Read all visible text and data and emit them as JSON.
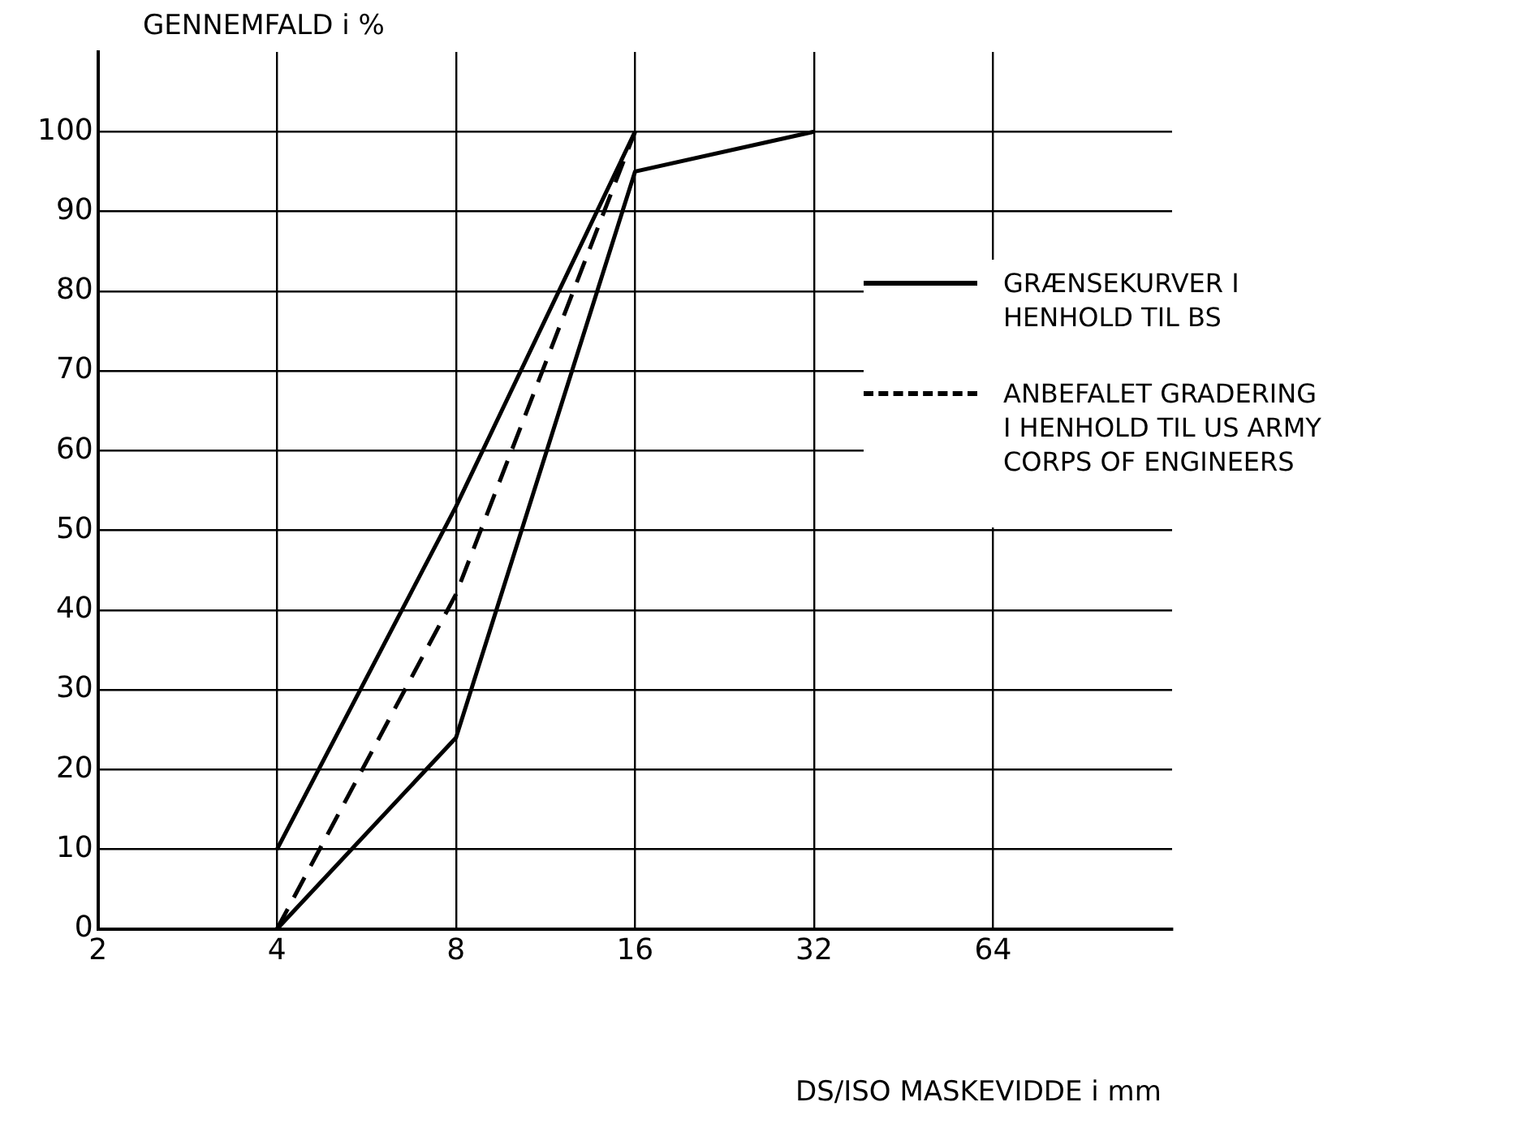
{
  "chart_data": {
    "type": "line",
    "ylabel": "GENNEMFALD i %",
    "xlabel": "DS/ISO MASKEVIDDE i mm",
    "log": "x",
    "xlim": [
      2,
      128
    ],
    "xticks": [
      2,
      4,
      8,
      16,
      32,
      64
    ],
    "ylim": [
      0,
      110
    ],
    "yticks": [
      0,
      10,
      20,
      30,
      40,
      50,
      60,
      70,
      80,
      90,
      100
    ],
    "grid": true,
    "legend": "right",
    "series": [
      {
        "name": "GRÆNSEKURVER I HENHOLD TIL BS",
        "color": "#000000",
        "line_style": "solid",
        "x": [
          4,
          8,
          16
        ],
        "values": [
          10,
          53,
          100
        ]
      },
      {
        "color": "#000000",
        "line_style": "solid",
        "x": [
          4,
          8,
          16,
          32
        ],
        "values": [
          0,
          24,
          95,
          100
        ]
      },
      {
        "name": "ANBEFALET GRADERING I HENHOLD TIL US ARMY CORPS OF ENGINEERS",
        "color": "#000000",
        "line_style": "dashed",
        "x": [
          4,
          8,
          16
        ],
        "values": [
          0,
          42,
          100
        ]
      }
    ]
  }
}
